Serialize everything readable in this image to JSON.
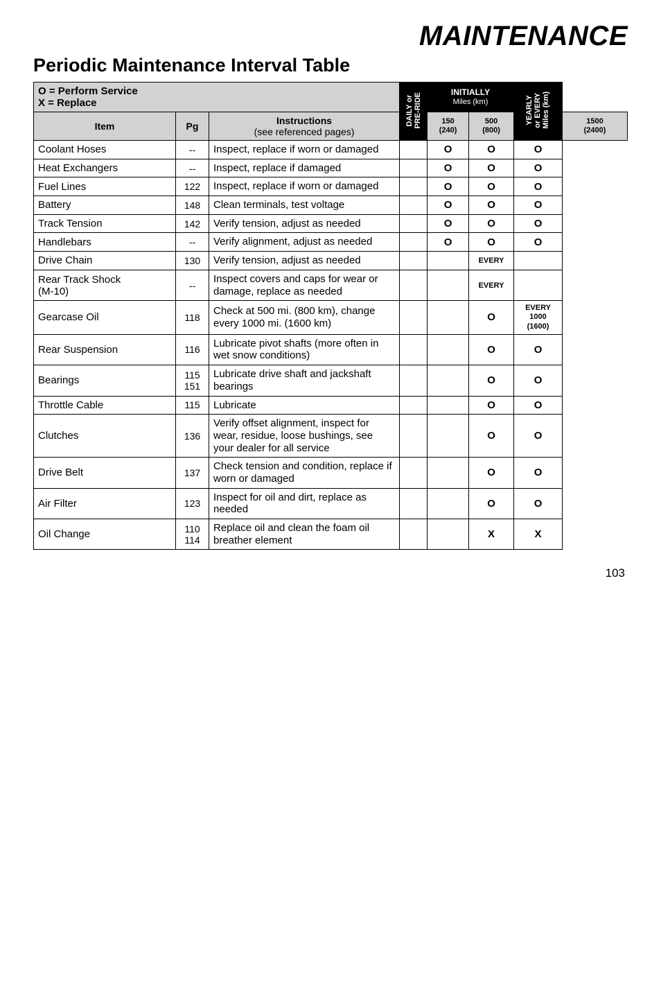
{
  "titles": {
    "main": "MAINTENANCE",
    "sub": "Periodic Maintenance Interval Table"
  },
  "header": {
    "legend_line1": "O = Perform Service",
    "legend_line2": "X = Replace",
    "daily": "DAILY or\nPRE-RIDE",
    "initially_label": "INITIALLY",
    "initially_sub": "Miles (km)",
    "yearly": "YEARLY\nor EVERY\nMiles (km)",
    "row2": {
      "item": "Item",
      "pg": "Pg",
      "instructions_l1": "Instructions",
      "instructions_l2": "(see referenced pages)",
      "c150_l1": "150",
      "c150_l2": "(240)",
      "c500_l1": "500",
      "c500_l2": "(800)",
      "c1500_l1": "1500",
      "c1500_l2": "(2400)"
    }
  },
  "rows": [
    {
      "item": "Coolant Hoses",
      "pg": "--",
      "instr": "Inspect, replace if worn or damaged",
      "c150": "O",
      "c500": "O",
      "c1500": "O"
    },
    {
      "item": "Heat Exchangers",
      "pg": "--",
      "instr": "Inspect, replace if damaged",
      "c150": "O",
      "c500": "O",
      "c1500": "O"
    },
    {
      "item": "Fuel Lines",
      "pg": "122",
      "instr": "Inspect, replace if worn or damaged",
      "c150": "O",
      "c500": "O",
      "c1500": "O"
    },
    {
      "item": "Battery",
      "pg": "148",
      "instr": "Clean terminals, test voltage",
      "c150": "O",
      "c500": "O",
      "c1500": "O"
    },
    {
      "item": "Track Tension",
      "pg": "142",
      "instr": "Verify tension, adjust as needed",
      "c150": "O",
      "c500": "O",
      "c1500": "O"
    },
    {
      "item": "Handlebars",
      "pg": "--",
      "instr": "Verify alignment, adjust as needed",
      "c150": "O",
      "c500": "O",
      "c1500": "O"
    },
    {
      "item": "Drive Chain",
      "pg": "130",
      "instr": "Verify tension, adjust as needed",
      "c500": "EVERY",
      "c500_style": "every"
    },
    {
      "item": "Rear Track Shock\n(M-10)",
      "pg": "--",
      "instr": "Inspect covers and caps for wear or damage, replace as needed",
      "c500": "EVERY",
      "c500_style": "every"
    },
    {
      "item": "Gearcase Oil",
      "pg": "118",
      "instr": "Check at 500 mi. (800 km), change every 1000 mi. (1600 km)",
      "c500": "O",
      "c1500": "EVERY\n1000\n(1600)",
      "c1500_style": "stack"
    },
    {
      "item": "Rear Suspension",
      "pg": "116",
      "instr": "Lubricate pivot shafts (more often in wet snow conditions)",
      "c500": "O",
      "c1500": "O"
    },
    {
      "item": "Bearings",
      "pg": "115\n151",
      "instr": "Lubricate drive shaft and jackshaft bearings",
      "c500": "O",
      "c1500": "O"
    },
    {
      "item": "Throttle Cable",
      "pg": "115",
      "instr": "Lubricate",
      "c500": "O",
      "c1500": "O"
    },
    {
      "item": "Clutches",
      "pg": "136",
      "instr": "Verify offset alignment, inspect for wear, residue, loose bushings, see your dealer for all service",
      "c500": "O",
      "c1500": "O"
    },
    {
      "item": "Drive Belt",
      "pg": "137",
      "instr": "Check tension and condition, replace if worn or damaged",
      "c500": "O",
      "c1500": "O"
    },
    {
      "item": "Air Filter",
      "pg": "123",
      "instr": "Inspect for oil and dirt, replace as needed",
      "c500": "O",
      "c1500": "O"
    },
    {
      "item": "Oil Change",
      "pg": "110\n114",
      "instr": "Replace oil and clean the foam oil breather element",
      "c500": "X",
      "c1500": "X"
    }
  ],
  "page_number": "103"
}
